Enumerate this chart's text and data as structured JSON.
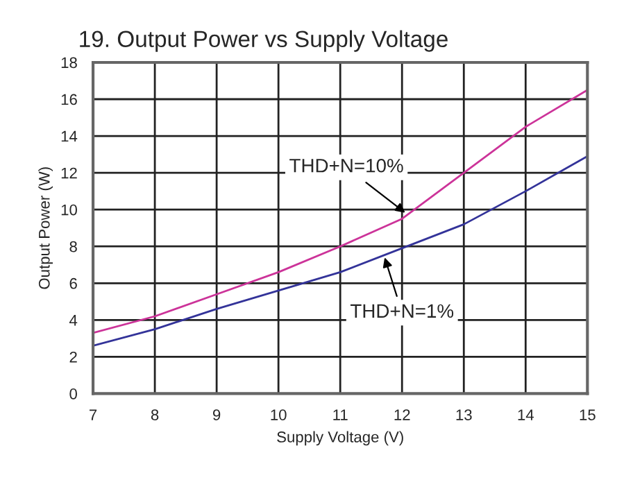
{
  "chart_data": {
    "type": "line",
    "title": "19. Output Power vs Supply Voltage",
    "xlabel": "Supply Voltage (V)",
    "ylabel": "Output Power (W)",
    "x": [
      7,
      8,
      9,
      10,
      11,
      12,
      13,
      14,
      15
    ],
    "series": [
      {
        "color": "#cc3399",
        "values": [
          3.3,
          4.2,
          5.4,
          6.6,
          8.0,
          9.5,
          12.0,
          14.5,
          16.5
        ]
      },
      {
        "color": "#333399",
        "values": [
          2.6,
          3.5,
          4.6,
          5.6,
          6.6,
          7.9,
          9.2,
          11.0,
          12.9
        ]
      }
    ],
    "annotations": [
      {
        "text": "THD+N=10%",
        "x": 12.1,
        "y": 9.7
      },
      {
        "text": "THD+N=1%",
        "x": 11.7,
        "y": 7.6
      }
    ],
    "xlim": [
      7,
      15
    ],
    "ylim": [
      0,
      18
    ],
    "xticks": [
      7,
      8,
      9,
      10,
      11,
      12,
      13,
      14,
      15
    ],
    "yticks": [
      0,
      2,
      4,
      6,
      8,
      10,
      12,
      14,
      16,
      18
    ],
    "grid": true
  }
}
